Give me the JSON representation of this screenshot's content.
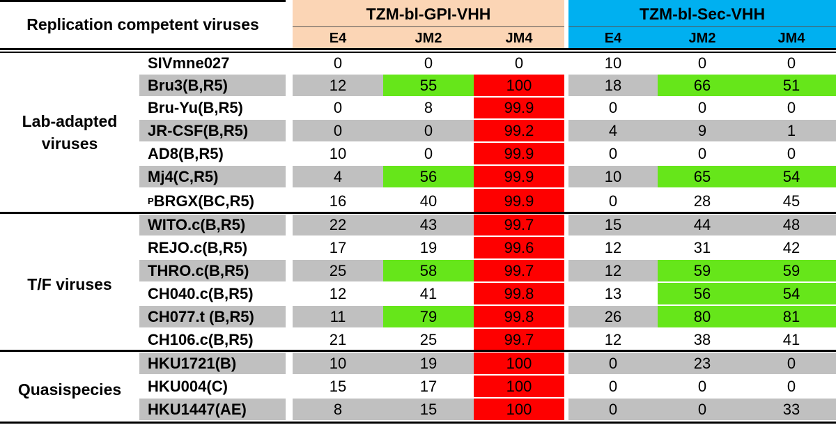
{
  "header": {
    "title": "Replication competent viruses",
    "groups": [
      {
        "label": "TZM-bl-GPI-VHH",
        "color": "#fbd5b5",
        "columns": [
          "E4",
          "JM2",
          "JM4"
        ]
      },
      {
        "label": "TZM-bl-Sec-VHH",
        "color": "#00b0f0",
        "columns": [
          "E4",
          "JM2",
          "JM4"
        ]
      }
    ]
  },
  "colors": {
    "highlight_green": "#66e61a",
    "highlight_red": "#fe0000",
    "row_shade": "#c0c0c0"
  },
  "sections": [
    {
      "label": "Lab-adapted viruses"
    },
    {
      "label": "T/F viruses"
    },
    {
      "label": "Quasispecies"
    }
  ],
  "rows": [
    {
      "name": "SIVmne027",
      "gpi": [
        "0",
        "0",
        "0"
      ],
      "sec": [
        "10",
        "0",
        "0"
      ]
    },
    {
      "name": "Bru3(B,R5)",
      "gpi": [
        "12",
        "55",
        "100"
      ],
      "sec": [
        "18",
        "66",
        "51"
      ]
    },
    {
      "name": "Bru-Yu(B,R5)",
      "gpi": [
        "0",
        "8",
        "99.9"
      ],
      "sec": [
        "0",
        "0",
        "0"
      ]
    },
    {
      "name": "JR-CSF(B,R5)",
      "gpi": [
        "0",
        "0",
        "99.2"
      ],
      "sec": [
        "4",
        "9",
        "1"
      ]
    },
    {
      "name": "AD8(B,R5)",
      "gpi": [
        "10",
        "0",
        "99.9"
      ],
      "sec": [
        "0",
        "0",
        "0"
      ]
    },
    {
      "name": "Mj4(C,R5)",
      "gpi": [
        "4",
        "56",
        "99.9"
      ],
      "sec": [
        "10",
        "65",
        "54"
      ]
    },
    {
      "name_prefix": "P",
      "name": "BRGX(BC,R5)",
      "gpi": [
        "16",
        "40",
        "99.9"
      ],
      "sec": [
        "0",
        "28",
        "45"
      ]
    },
    {
      "name": "WITO.c(B,R5)",
      "gpi": [
        "22",
        "43",
        "99.7"
      ],
      "sec": [
        "15",
        "44",
        "48"
      ]
    },
    {
      "name": "REJO.c(B,R5)",
      "gpi": [
        "17",
        "19",
        "99.6"
      ],
      "sec": [
        "12",
        "31",
        "42"
      ]
    },
    {
      "name": "THRO.c(B,R5)",
      "gpi": [
        "25",
        "58",
        "99.7"
      ],
      "sec": [
        "12",
        "59",
        "59"
      ]
    },
    {
      "name": "CH040.c(B,R5)",
      "gpi": [
        "12",
        "41",
        "99.8"
      ],
      "sec": [
        "13",
        "56",
        "54"
      ]
    },
    {
      "name": "CH077.t (B,R5)",
      "gpi": [
        "11",
        "79",
        "99.8"
      ],
      "sec": [
        "26",
        "80",
        "81"
      ]
    },
    {
      "name": "CH106.c(B,R5)",
      "gpi": [
        "21",
        "25",
        "99.7"
      ],
      "sec": [
        "12",
        "38",
        "41"
      ]
    },
    {
      "name": "HKU1721(B)",
      "gpi": [
        "10",
        "19",
        "100"
      ],
      "sec": [
        "0",
        "23",
        "0"
      ]
    },
    {
      "name": "HKU004(C)",
      "gpi": [
        "15",
        "17",
        "100"
      ],
      "sec": [
        "0",
        "0",
        "0"
      ]
    },
    {
      "name": "HKU1447(AE)",
      "gpi": [
        "8",
        "15",
        "100"
      ],
      "sec": [
        "0",
        "0",
        "33"
      ]
    }
  ]
}
